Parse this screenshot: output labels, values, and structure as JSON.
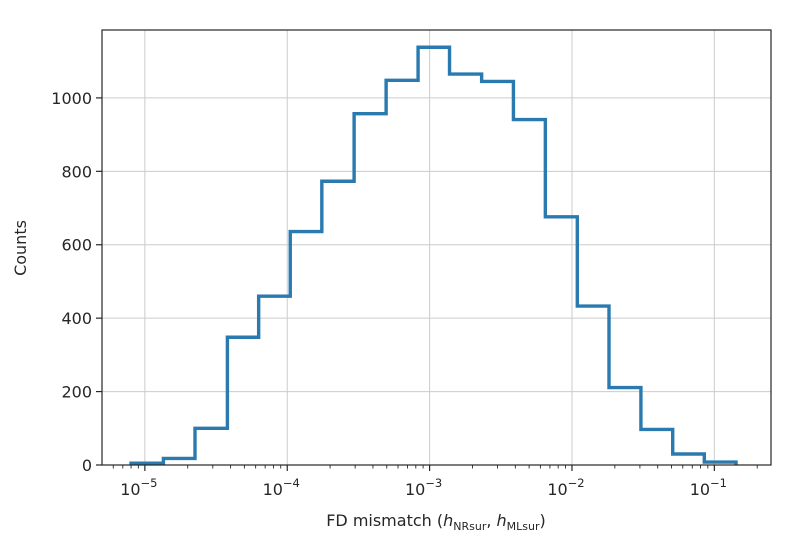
{
  "chart_data": {
    "type": "histogram",
    "title": "",
    "xlabel_prefix": "FD mismatch (",
    "xlabel_h": "h",
    "xlabel_sub1": "NRsur",
    "xlabel_sep": ", ",
    "xlabel_sub2": "MLsur",
    "xlabel_suffix": ")",
    "ylabel": "Counts",
    "xscale": "log",
    "xlim": [
      5e-06,
      0.25
    ],
    "ylim": [
      0,
      1185
    ],
    "grid": true,
    "x_ticks": [
      {
        "value": 1e-05,
        "base": "10",
        "exp": "−5"
      },
      {
        "value": 0.0001,
        "base": "10",
        "exp": "−4"
      },
      {
        "value": 0.001,
        "base": "10",
        "exp": "−3"
      },
      {
        "value": 0.01,
        "base": "10",
        "exp": "−2"
      },
      {
        "value": 0.1,
        "base": "10",
        "exp": "−1"
      }
    ],
    "y_ticks": [
      {
        "value": 0,
        "label": "0"
      },
      {
        "value": 200,
        "label": "200"
      },
      {
        "value": 400,
        "label": "400"
      },
      {
        "value": 600,
        "label": "600"
      },
      {
        "value": 800,
        "label": "800"
      },
      {
        "value": 1000,
        "label": "1000"
      }
    ],
    "bin_edges": [
      8e-06,
      1.35e-05,
      2.25e-05,
      3.8e-05,
      6.3e-05,
      0.000105,
      0.000175,
      0.000295,
      0.000495,
      0.00083,
      0.00138,
      0.00232,
      0.00388,
      0.0065,
      0.0109,
      0.0182,
      0.0305,
      0.051,
      0.085,
      0.142
    ],
    "counts": [
      5,
      18,
      100,
      348,
      460,
      636,
      773,
      957,
      1048,
      1138,
      1065,
      1045,
      941,
      676,
      433,
      211,
      97,
      30,
      8
    ],
    "color": "#2a7ab0"
  }
}
